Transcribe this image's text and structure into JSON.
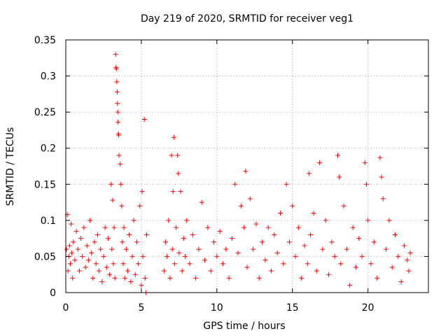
{
  "chart_data": {
    "type": "scatter",
    "title": "Day 219 of 2020, SRMTID for receiver veg1",
    "xlabel": "GPS time / hours",
    "ylabel": "SRMTID / TECUs",
    "xlim": [
      0,
      24
    ],
    "ylim": [
      0,
      0.35
    ],
    "xticks": [
      0,
      5,
      10,
      15,
      20
    ],
    "xtick_labels": [
      "0",
      "5",
      "10",
      "15",
      "20"
    ],
    "yticks": [
      0,
      0.05,
      0.1,
      0.15,
      0.2,
      0.25,
      0.3,
      0.35
    ],
    "ytick_labels": [
      "0",
      "0.05",
      "0.1",
      "0.15",
      "0.2",
      "0.25",
      "0.3",
      "0.35"
    ],
    "grid": true,
    "marker": "+",
    "color": "#ff0000",
    "series": [
      {
        "name": "veg1",
        "points": [
          [
            0.05,
            0.06
          ],
          [
            0.1,
            0.108
          ],
          [
            0.15,
            0.03
          ],
          [
            0.2,
            0.05
          ],
          [
            0.25,
            0.065
          ],
          [
            0.3,
            0.04
          ],
          [
            0.35,
            0.095
          ],
          [
            0.4,
            0.055
          ],
          [
            0.45,
            0.02
          ],
          [
            0.5,
            0.07
          ],
          [
            0.6,
            0.045
          ],
          [
            0.7,
            0.085
          ],
          [
            0.8,
            0.06
          ],
          [
            0.9,
            0.03
          ],
          [
            1.0,
            0.075
          ],
          [
            1.1,
            0.05
          ],
          [
            1.2,
            0.09
          ],
          [
            1.3,
            0.035
          ],
          [
            1.4,
            0.065
          ],
          [
            1.5,
            0.045
          ],
          [
            1.6,
            0.1
          ],
          [
            1.7,
            0.055
          ],
          [
            1.8,
            0.02
          ],
          [
            1.9,
            0.07
          ],
          [
            2.0,
            0.04
          ],
          [
            2.1,
            0.08
          ],
          [
            2.2,
            0.03
          ],
          [
            2.3,
            0.06
          ],
          [
            2.4,
            0.015
          ],
          [
            2.5,
            0.05
          ],
          [
            2.6,
            0.09
          ],
          [
            2.7,
            0.035
          ],
          [
            2.8,
            0.075
          ],
          [
            2.9,
            0.025
          ],
          [
            3.0,
            0.15
          ],
          [
            3.05,
            0.06
          ],
          [
            3.1,
            0.128
          ],
          [
            3.15,
            0.04
          ],
          [
            3.2,
            0.09
          ],
          [
            3.25,
            0.02
          ],
          [
            3.3,
            0.33
          ],
          [
            3.32,
            0.312
          ],
          [
            3.35,
            0.31
          ],
          [
            3.37,
            0.292
          ],
          [
            3.4,
            0.278
          ],
          [
            3.42,
            0.262
          ],
          [
            3.44,
            0.25
          ],
          [
            3.46,
            0.236
          ],
          [
            3.48,
            0.22
          ],
          [
            3.5,
            0.218
          ],
          [
            3.52,
            0.19
          ],
          [
            3.6,
            0.178
          ],
          [
            3.65,
            0.15
          ],
          [
            3.7,
            0.12
          ],
          [
            3.75,
            0.07
          ],
          [
            3.8,
            0.04
          ],
          [
            3.85,
            0.09
          ],
          [
            3.9,
            0.02
          ],
          [
            4.0,
            0.06
          ],
          [
            4.1,
            0.03
          ],
          [
            4.2,
            0.08
          ],
          [
            4.3,
            0.015
          ],
          [
            4.4,
            0.05
          ],
          [
            4.5,
            0.1
          ],
          [
            4.6,
            0.025
          ],
          [
            4.7,
            0.07
          ],
          [
            4.8,
            0.04
          ],
          [
            4.9,
            0.12
          ],
          [
            5.0,
            0.01
          ],
          [
            5.05,
            0.14
          ],
          [
            5.1,
            0.05
          ],
          [
            5.2,
            0.24
          ],
          [
            5.25,
            0.02
          ],
          [
            5.3,
            0.0
          ],
          [
            5.35,
            0.08
          ],
          [
            6.5,
            0.03
          ],
          [
            6.6,
            0.07
          ],
          [
            6.7,
            0.05
          ],
          [
            6.8,
            0.1
          ],
          [
            6.9,
            0.02
          ],
          [
            7.0,
            0.19
          ],
          [
            7.05,
            0.06
          ],
          [
            7.1,
            0.14
          ],
          [
            7.15,
            0.215
          ],
          [
            7.2,
            0.04
          ],
          [
            7.3,
            0.09
          ],
          [
            7.4,
            0.19
          ],
          [
            7.45,
            0.165
          ],
          [
            7.5,
            0.055
          ],
          [
            7.6,
            0.14
          ],
          [
            7.7,
            0.03
          ],
          [
            7.8,
            0.075
          ],
          [
            7.9,
            0.05
          ],
          [
            8.0,
            0.1
          ],
          [
            8.2,
            0.04
          ],
          [
            8.4,
            0.08
          ],
          [
            8.6,
            0.02
          ],
          [
            8.8,
            0.06
          ],
          [
            9.0,
            0.125
          ],
          [
            9.2,
            0.045
          ],
          [
            9.4,
            0.09
          ],
          [
            9.6,
            0.03
          ],
          [
            9.8,
            0.07
          ],
          [
            10.0,
            0.05
          ],
          [
            10.2,
            0.085
          ],
          [
            10.4,
            0.04
          ],
          [
            10.6,
            0.06
          ],
          [
            10.8,
            0.02
          ],
          [
            11.0,
            0.075
          ],
          [
            11.2,
            0.15
          ],
          [
            11.4,
            0.055
          ],
          [
            11.6,
            0.12
          ],
          [
            11.8,
            0.09
          ],
          [
            11.9,
            0.168
          ],
          [
            12.0,
            0.035
          ],
          [
            12.2,
            0.13
          ],
          [
            12.4,
            0.06
          ],
          [
            12.6,
            0.095
          ],
          [
            12.8,
            0.02
          ],
          [
            13.0,
            0.07
          ],
          [
            13.2,
            0.045
          ],
          [
            13.4,
            0.09
          ],
          [
            13.6,
            0.03
          ],
          [
            13.8,
            0.08
          ],
          [
            14.0,
            0.055
          ],
          [
            14.2,
            0.11
          ],
          [
            14.4,
            0.04
          ],
          [
            14.6,
            0.15
          ],
          [
            14.8,
            0.07
          ],
          [
            15.0,
            0.12
          ],
          [
            15.2,
            0.05
          ],
          [
            15.4,
            0.09
          ],
          [
            15.6,
            0.02
          ],
          [
            15.8,
            0.065
          ],
          [
            16.0,
            0.04
          ],
          [
            16.1,
            0.165
          ],
          [
            16.2,
            0.08
          ],
          [
            16.4,
            0.11
          ],
          [
            16.6,
            0.03
          ],
          [
            16.8,
            0.18
          ],
          [
            17.0,
            0.06
          ],
          [
            17.2,
            0.1
          ],
          [
            17.4,
            0.025
          ],
          [
            17.6,
            0.07
          ],
          [
            17.8,
            0.05
          ],
          [
            18.0,
            0.19
          ],
          [
            18.1,
            0.16
          ],
          [
            18.2,
            0.04
          ],
          [
            18.4,
            0.12
          ],
          [
            18.6,
            0.06
          ],
          [
            18.8,
            0.01
          ],
          [
            19.0,
            0.09
          ],
          [
            19.2,
            0.035
          ],
          [
            19.4,
            0.075
          ],
          [
            19.6,
            0.05
          ],
          [
            19.8,
            0.18
          ],
          [
            19.9,
            0.15
          ],
          [
            20.0,
            0.1
          ],
          [
            20.2,
            0.04
          ],
          [
            20.4,
            0.07
          ],
          [
            20.6,
            0.02
          ],
          [
            20.8,
            0.187
          ],
          [
            20.9,
            0.16
          ],
          [
            21.0,
            0.13
          ],
          [
            21.2,
            0.06
          ],
          [
            21.4,
            0.1
          ],
          [
            21.6,
            0.035
          ],
          [
            21.8,
            0.08
          ],
          [
            22.0,
            0.05
          ],
          [
            22.2,
            0.015
          ],
          [
            22.4,
            0.065
          ],
          [
            22.6,
            0.045
          ],
          [
            22.7,
            0.03
          ],
          [
            22.8,
            0.055
          ]
        ]
      }
    ]
  }
}
